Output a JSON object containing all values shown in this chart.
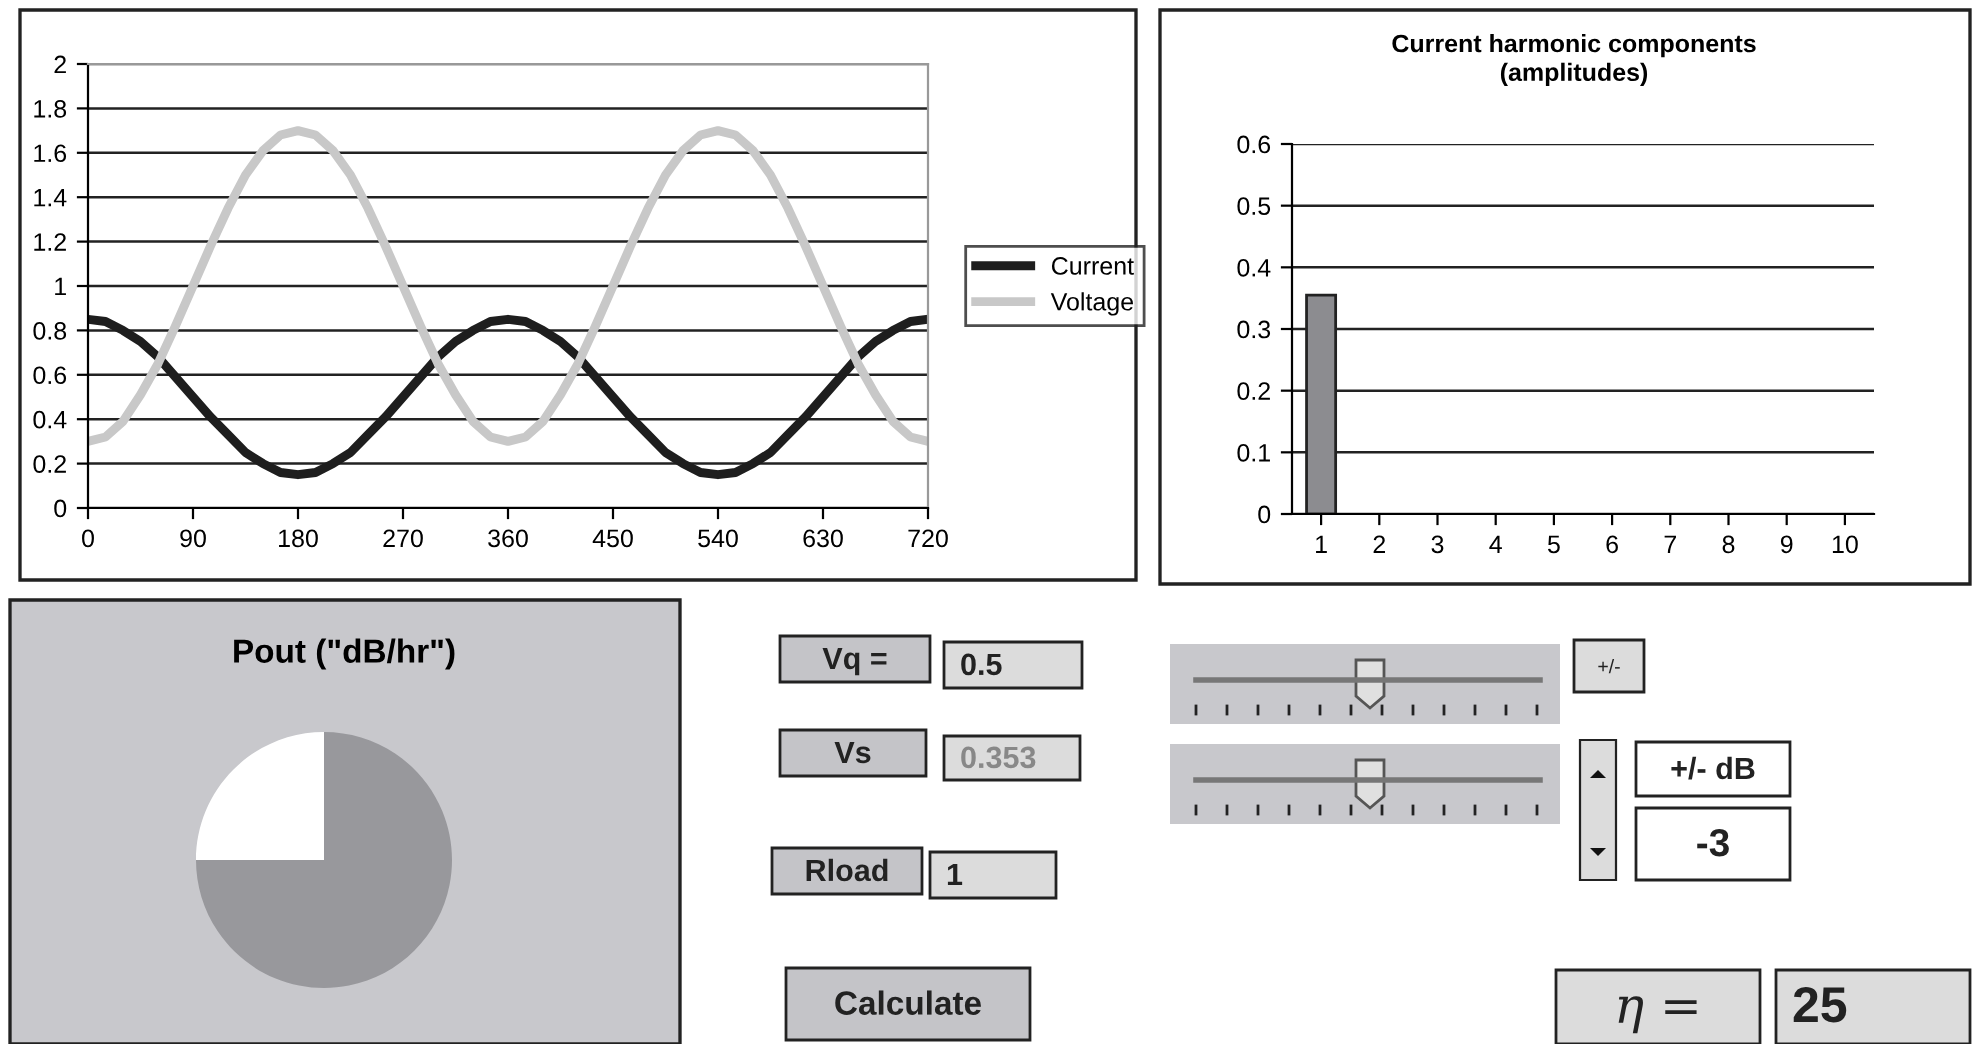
{
  "chart_data": [
    {
      "type": "line",
      "x": [
        0,
        15,
        30,
        45,
        60,
        75,
        90,
        105,
        120,
        135,
        150,
        165,
        180,
        195,
        210,
        225,
        240,
        255,
        270,
        285,
        300,
        315,
        330,
        345,
        360,
        375,
        390,
        405,
        420,
        435,
        450,
        465,
        480,
        495,
        510,
        525,
        540,
        555,
        570,
        585,
        600,
        615,
        630,
        645,
        660,
        675,
        690,
        705,
        720
      ],
      "series": [
        {
          "name": "Current",
          "color": "#1e1e1e",
          "values": [
            0.85,
            0.84,
            0.8,
            0.75,
            0.68,
            0.59,
            0.5,
            0.41,
            0.33,
            0.25,
            0.2,
            0.16,
            0.15,
            0.16,
            0.2,
            0.25,
            0.33,
            0.41,
            0.5,
            0.59,
            0.68,
            0.75,
            0.8,
            0.84,
            0.85,
            0.84,
            0.8,
            0.75,
            0.68,
            0.59,
            0.5,
            0.41,
            0.33,
            0.25,
            0.2,
            0.16,
            0.15,
            0.16,
            0.2,
            0.25,
            0.33,
            0.41,
            0.5,
            0.59,
            0.68,
            0.75,
            0.8,
            0.84,
            0.85
          ]
        },
        {
          "name": "Voltage",
          "color": "#c8c8c8",
          "values": [
            0.3,
            0.32,
            0.39,
            0.51,
            0.65,
            0.82,
            1,
            1.18,
            1.35,
            1.5,
            1.61,
            1.68,
            1.7,
            1.68,
            1.61,
            1.5,
            1.35,
            1.18,
            1,
            0.82,
            0.65,
            0.51,
            0.39,
            0.32,
            0.3,
            0.32,
            0.39,
            0.51,
            0.65,
            0.82,
            1,
            1.18,
            1.35,
            1.5,
            1.61,
            1.68,
            1.7,
            1.68,
            1.61,
            1.5,
            1.35,
            1.18,
            1,
            0.82,
            0.65,
            0.51,
            0.39,
            0.32,
            0.3
          ]
        }
      ],
      "xlim": [
        0,
        720
      ],
      "xticks": [
        0,
        90,
        180,
        270,
        360,
        450,
        540,
        630,
        720
      ],
      "ylim": [
        0,
        2
      ],
      "yticks": [
        0,
        0.2,
        0.4,
        0.6,
        0.8,
        1,
        1.2,
        1.4,
        1.6,
        1.8,
        2
      ],
      "grid": "y",
      "legend": "right"
    },
    {
      "type": "bar",
      "title": "Current harmonic components\n(amplitudes)",
      "categories": [
        "1",
        "2",
        "3",
        "4",
        "5",
        "6",
        "7",
        "8",
        "9",
        "10"
      ],
      "values": [
        0.355,
        null,
        null,
        null,
        null,
        null,
        null,
        null,
        null,
        null
      ],
      "color": "#8c8c90",
      "ylim": [
        0,
        0.6
      ],
      "yticks": [
        0,
        0.1,
        0.2,
        0.3,
        0.4,
        0.5,
        0.6
      ],
      "grid": "y"
    },
    {
      "type": "pie",
      "title": "Pout (\"dB/hr\")",
      "categories": [
        null,
        null
      ],
      "values": [
        75,
        25
      ],
      "colors": [
        "#98989c",
        "#ffffff"
      ]
    },
    {
      "type": "other",
      "annotations": [
        "Vq =",
        "0.5",
        "Vs",
        "0.353",
        "Rload",
        "1",
        "Calculate",
        "+/-",
        "+/- dB",
        "-3",
        "η =",
        "25"
      ]
    }
  ]
}
